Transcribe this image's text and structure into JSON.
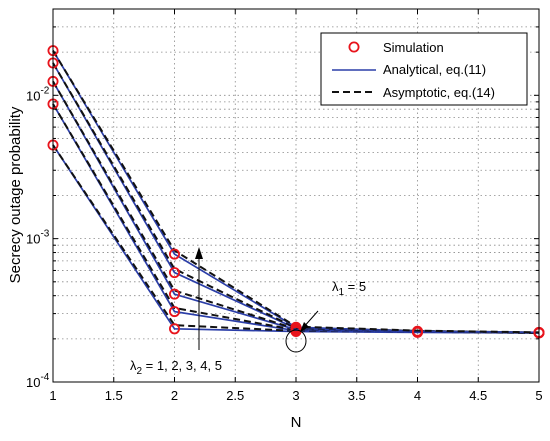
{
  "chart_data": {
    "type": "line",
    "title": "",
    "xlabel": "N",
    "ylabel": "Secrecy outage probability",
    "yscale": "log",
    "xlim": [
      1,
      5
    ],
    "ylim": [
      0.0001,
      0.04
    ],
    "x_ticks": [
      1,
      1.5,
      2,
      2.5,
      3,
      3.5,
      4,
      4.5,
      5
    ],
    "x_tick_labels": [
      "1",
      "1.5",
      "2",
      "2.5",
      "3",
      "3.5",
      "4",
      "4.5",
      "5"
    ],
    "y_ticks": [
      {
        "value": 0.0001,
        "base": "10",
        "exp": "-4"
      },
      {
        "value": 0.001,
        "base": "10",
        "exp": "-3"
      },
      {
        "value": 0.01,
        "base": "10",
        "exp": "-2"
      }
    ],
    "grid": true,
    "legend_position": "top-right",
    "legend": [
      {
        "label": "Simulation",
        "style": "marker",
        "color": "#e8141c"
      },
      {
        "label": "Analytical, eq.(11)",
        "style": "solid",
        "color": "#2b3ea8"
      },
      {
        "label": "Asymptotic, eq.(14)",
        "style": "dashed",
        "color": "#111111"
      }
    ],
    "x": [
      1,
      2,
      3,
      4,
      5
    ],
    "series": [
      {
        "values": [
          0.0045,
          0.000235,
          0.000225,
          0.000222,
          0.00022
        ]
      },
      {
        "values": [
          0.0087,
          0.00031,
          0.000228,
          0.000223,
          0.00022
        ]
      },
      {
        "values": [
          0.0125,
          0.00041,
          0.000232,
          0.000224,
          0.000221
        ]
      },
      {
        "values": [
          0.0168,
          0.00058,
          0.000236,
          0.000225,
          0.000221
        ]
      },
      {
        "values": [
          0.0205,
          0.00078,
          0.000241,
          0.000226,
          0.000222
        ]
      }
    ],
    "annotations": {
      "lambda1": {
        "symbol": "λ",
        "sub": "1",
        "text": " = 5"
      },
      "lambda2": {
        "symbol": "λ",
        "sub": "2",
        "text": " = 1, 2, 3, 4, 5"
      }
    }
  },
  "colors": {
    "analytical": "#2b3ea8",
    "asymptotic": "#111111",
    "simulation": "#e8141c"
  }
}
